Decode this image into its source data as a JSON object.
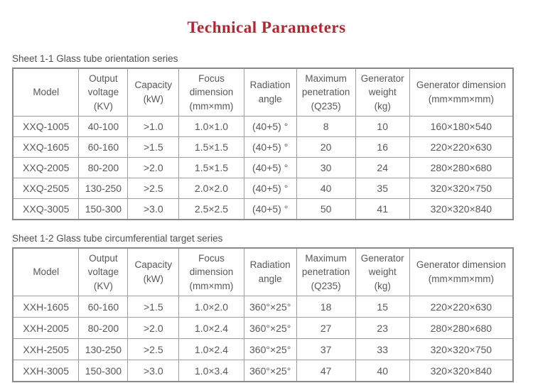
{
  "page": {
    "title": "Technical Parameters"
  },
  "colors": {
    "title_red": "#b5242f",
    "table_text_gray": "#595959",
    "table_border_gray": "#8a8a8a",
    "grid_line_gray": "#9e9e9e"
  },
  "tables": [
    {
      "caption": "Sheet 1-1 Glass tube orientation series",
      "headers": [
        "Model",
        "Output\nvoltage\n(KV)",
        "Capacity\n(kW)",
        "Focus\ndimension\n(mm×mm)",
        "Radiation\nangle",
        "Maximum\npenetration\n(Q235)",
        "Generator\nweight\n(kg)",
        "Generator dimension\n(mm×mm×mm)"
      ],
      "rows": [
        [
          "XXQ-1005",
          "40-100",
          ">1.0",
          "1.0×1.0",
          "(40+5) °",
          "8",
          "10",
          "160×180×540"
        ],
        [
          "XXQ-1605",
          "60-160",
          ">1.5",
          "1.5×1.5",
          "(40+5) °",
          "20",
          "16",
          "220×220×630"
        ],
        [
          "XXQ-2005",
          "80-200",
          ">2.0",
          "1.5×1.5",
          "(40+5) °",
          "30",
          "24",
          "280×280×680"
        ],
        [
          "XXQ-2505",
          "130-250",
          ">2.5",
          "2.0×2.0",
          "(40+5) °",
          "40",
          "35",
          "320×320×750"
        ],
        [
          "XXQ-3005",
          "150-300",
          ">3.0",
          "2.5×2.5",
          "(40+5) °",
          "50",
          "41",
          "320×320×840"
        ]
      ]
    },
    {
      "caption": "Sheet 1-2 Glass tube circumferential target series",
      "headers": [
        "Model",
        "Output\nvoltage\n(KV)",
        "Capacity\n(kW)",
        "Focus\ndimension\n(mm×mm)",
        "Radiation\nangle",
        "Maximum\npenetration\n(Q235)",
        "Generator\nweight\n(kg)",
        "Generator dimension\n(mm×mm×mm)"
      ],
      "rows": [
        [
          "XXH-1605",
          "60-160",
          ">1.5",
          "1.0×2.0",
          "360°×25°",
          "18",
          "15",
          "220×220×630"
        ],
        [
          "XXH-2005",
          "80-200",
          ">2.0",
          "1.0×2.4",
          "360°×25°",
          "27",
          "23",
          "280×280×680"
        ],
        [
          "XXH-2505",
          "130-250",
          ">2.5",
          "1.0×2.4",
          "360°×25°",
          "37",
          "33",
          "320×320×750"
        ],
        [
          "XXH-3005",
          "150-300",
          ">3.0",
          "1.0×3.4",
          "360°×25°",
          "47",
          "40",
          "320×320×840"
        ]
      ]
    }
  ]
}
